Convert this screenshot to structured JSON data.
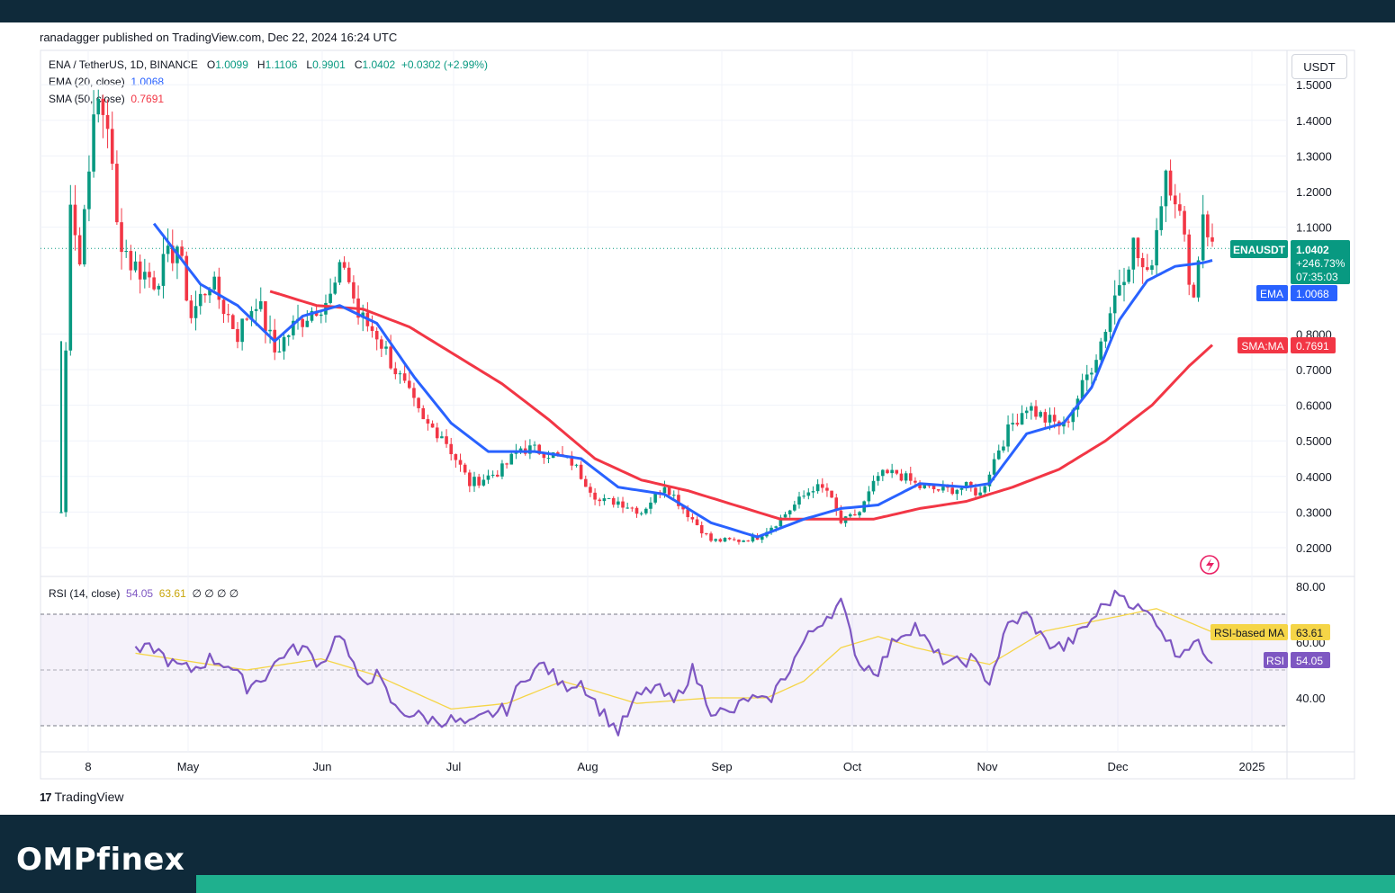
{
  "publisher": "ranadagger published on TradingView.com, Dec 22, 2024 16:24 UTC",
  "brand": "OMPfinex",
  "tradingview_label": "TradingView",
  "currency_button": "USDT",
  "legend": {
    "symbol": "ENA / TetherUS, 1D, BINANCE",
    "open_label": "O",
    "open": "1.0099",
    "high_label": "H",
    "high": "1.1106",
    "low_label": "L",
    "low": "0.9901",
    "close_label": "C",
    "close": "1.0402",
    "change": "+0.0302 (+2.99%)",
    "ema_label": "EMA (20, close)",
    "ema_value": "1.0068",
    "sma_label": "SMA (50, close)",
    "sma_value": "0.7691",
    "rsi_label": "RSI (14, close)",
    "rsi_value": "54.05",
    "rsi_ma_value": "63.61",
    "rsi_extra": "∅ ∅ ∅ ∅"
  },
  "badges": {
    "symbol_tag": "ENAUSDT",
    "price": "1.0402",
    "pct": "+246.73%",
    "countdown": "07:35:03",
    "ema_tag": "EMA",
    "ema_value": "1.0068",
    "sma_tag": "SMA:MA",
    "sma_value": "0.7691",
    "rsi_ma_tag": "RSI-based MA",
    "rsi_ma_value": "63.61",
    "rsi_tag": "RSI",
    "rsi_value": "54.05"
  },
  "colors": {
    "up": "#089981",
    "down": "#f23645",
    "ema": "#2962ff",
    "sma": "#f23645",
    "rsi": "#7e57c2",
    "rsi_ma": "#f5d547",
    "header": "#0f2a3a",
    "accent": "#1fb08e"
  },
  "chart_data": [
    {
      "type": "candlestick",
      "title": "ENA / TetherUS, 1D, BINANCE",
      "y_axis_ticks": [
        "1.5000",
        "1.4000",
        "1.3000",
        "1.2000",
        "1.1000",
        "0.8000",
        "0.7000",
        "0.6000",
        "0.5000",
        "0.4000",
        "0.3000",
        "0.2000"
      ],
      "x_axis_ticks": [
        "8",
        "May",
        "Jun",
        "Jul",
        "Aug",
        "Sep",
        "Oct",
        "Nov",
        "Dec",
        "2025"
      ],
      "price_path": [
        [
          0,
          0.3
        ],
        [
          1,
          0.75
        ],
        [
          2,
          1.2
        ],
        [
          4,
          1.0
        ],
        [
          6,
          1.3
        ],
        [
          8,
          1.45
        ],
        [
          10,
          1.4
        ],
        [
          12,
          1.1
        ],
        [
          15,
          1.0
        ],
        [
          20,
          0.95
        ],
        [
          25,
          1.05
        ],
        [
          28,
          0.85
        ],
        [
          32,
          0.95
        ],
        [
          38,
          0.8
        ],
        [
          42,
          0.9
        ],
        [
          46,
          0.75
        ],
        [
          50,
          0.82
        ],
        [
          55,
          0.88
        ],
        [
          58,
          0.9
        ],
        [
          61,
          1.0
        ],
        [
          64,
          0.85
        ],
        [
          68,
          0.8
        ],
        [
          72,
          0.7
        ],
        [
          78,
          0.55
        ],
        [
          82,
          0.52
        ],
        [
          88,
          0.38
        ],
        [
          92,
          0.4
        ],
        [
          95,
          0.42
        ],
        [
          99,
          0.48
        ],
        [
          104,
          0.47
        ],
        [
          110,
          0.44
        ],
        [
          116,
          0.33
        ],
        [
          120,
          0.33
        ],
        [
          125,
          0.3
        ],
        [
          130,
          0.38
        ],
        [
          134,
          0.31
        ],
        [
          140,
          0.22
        ],
        [
          146,
          0.22
        ],
        [
          150,
          0.23
        ],
        [
          154,
          0.27
        ],
        [
          158,
          0.32
        ],
        [
          162,
          0.37
        ],
        [
          165,
          0.36
        ],
        [
          168,
          0.27
        ],
        [
          172,
          0.3
        ],
        [
          176,
          0.4
        ],
        [
          180,
          0.41
        ],
        [
          185,
          0.37
        ],
        [
          190,
          0.36
        ],
        [
          195,
          0.37
        ],
        [
          198,
          0.35
        ],
        [
          202,
          0.48
        ],
        [
          205,
          0.55
        ],
        [
          208,
          0.6
        ],
        [
          212,
          0.56
        ],
        [
          216,
          0.54
        ],
        [
          220,
          0.65
        ],
        [
          224,
          0.78
        ],
        [
          228,
          0.95
        ],
        [
          231,
          1.05
        ],
        [
          234,
          0.95
        ],
        [
          236,
          1.1
        ],
        [
          238,
          1.27
        ],
        [
          240,
          1.2
        ],
        [
          242,
          1.05
        ],
        [
          244,
          0.9
        ],
        [
          246,
          1.15
        ],
        [
          248,
          1.04
        ]
      ],
      "ema_path": [
        [
          20,
          1.11
        ],
        [
          30,
          0.94
        ],
        [
          38,
          0.88
        ],
        [
          46,
          0.78
        ],
        [
          52,
          0.85
        ],
        [
          60,
          0.88
        ],
        [
          68,
          0.83
        ],
        [
          76,
          0.68
        ],
        [
          84,
          0.55
        ],
        [
          92,
          0.47
        ],
        [
          102,
          0.47
        ],
        [
          112,
          0.45
        ],
        [
          120,
          0.37
        ],
        [
          130,
          0.35
        ],
        [
          140,
          0.27
        ],
        [
          150,
          0.23
        ],
        [
          160,
          0.28
        ],
        [
          168,
          0.31
        ],
        [
          176,
          0.32
        ],
        [
          185,
          0.38
        ],
        [
          195,
          0.37
        ],
        [
          200,
          0.38
        ],
        [
          208,
          0.52
        ],
        [
          216,
          0.55
        ],
        [
          222,
          0.65
        ],
        [
          228,
          0.84
        ],
        [
          234,
          0.95
        ],
        [
          240,
          0.99
        ],
        [
          246,
          1.0
        ],
        [
          248,
          1.0068
        ]
      ],
      "sma_path": [
        [
          45,
          0.92
        ],
        [
          55,
          0.88
        ],
        [
          65,
          0.87
        ],
        [
          75,
          0.82
        ],
        [
          85,
          0.74
        ],
        [
          95,
          0.66
        ],
        [
          105,
          0.56
        ],
        [
          115,
          0.45
        ],
        [
          125,
          0.39
        ],
        [
          135,
          0.36
        ],
        [
          145,
          0.32
        ],
        [
          155,
          0.28
        ],
        [
          165,
          0.28
        ],
        [
          175,
          0.28
        ],
        [
          185,
          0.31
        ],
        [
          195,
          0.33
        ],
        [
          205,
          0.37
        ],
        [
          215,
          0.42
        ],
        [
          225,
          0.5
        ],
        [
          235,
          0.6
        ],
        [
          243,
          0.71
        ],
        [
          248,
          0.7691
        ]
      ],
      "last_price": 1.0402,
      "ema_20": 1.0068,
      "sma_50": 0.7691
    },
    {
      "type": "line",
      "title": "RSI (14, close)",
      "y_axis_ticks": [
        "80.00",
        "60.00",
        "40.00"
      ],
      "overbought": 70,
      "oversold": 30,
      "ylim": [
        25,
        85
      ],
      "rsi_path": [
        [
          16,
          56
        ],
        [
          20,
          58
        ],
        [
          24,
          52
        ],
        [
          28,
          50
        ],
        [
          32,
          54
        ],
        [
          36,
          52
        ],
        [
          40,
          44
        ],
        [
          44,
          48
        ],
        [
          48,
          56
        ],
        [
          52,
          58
        ],
        [
          56,
          52
        ],
        [
          60,
          64
        ],
        [
          64,
          46
        ],
        [
          68,
          48
        ],
        [
          72,
          36
        ],
        [
          76,
          34
        ],
        [
          80,
          32
        ],
        [
          84,
          32
        ],
        [
          88,
          30
        ],
        [
          92,
          34
        ],
        [
          96,
          36
        ],
        [
          100,
          48
        ],
        [
          104,
          52
        ],
        [
          108,
          44
        ],
        [
          112,
          46
        ],
        [
          116,
          36
        ],
        [
          120,
          28
        ],
        [
          124,
          40
        ],
        [
          128,
          44
        ],
        [
          132,
          38
        ],
        [
          136,
          50
        ],
        [
          140,
          36
        ],
        [
          144,
          34
        ],
        [
          148,
          40
        ],
        [
          152,
          38
        ],
        [
          156,
          48
        ],
        [
          160,
          60
        ],
        [
          164,
          68
        ],
        [
          168,
          74
        ],
        [
          172,
          52
        ],
        [
          176,
          50
        ],
        [
          180,
          62
        ],
        [
          184,
          66
        ],
        [
          188,
          56
        ],
        [
          192,
          52
        ],
        [
          196,
          54
        ],
        [
          200,
          46
        ],
        [
          204,
          66
        ],
        [
          208,
          70
        ],
        [
          212,
          60
        ],
        [
          216,
          58
        ],
        [
          220,
          64
        ],
        [
          224,
          72
        ],
        [
          228,
          78
        ],
        [
          232,
          72
        ],
        [
          236,
          68
        ],
        [
          240,
          56
        ],
        [
          244,
          60
        ],
        [
          248,
          54.05
        ]
      ],
      "rsi_ma_path": [
        [
          16,
          56
        ],
        [
          40,
          50
        ],
        [
          56,
          54
        ],
        [
          68,
          48
        ],
        [
          84,
          36
        ],
        [
          96,
          38
        ],
        [
          108,
          46
        ],
        [
          124,
          38
        ],
        [
          140,
          40
        ],
        [
          152,
          40
        ],
        [
          160,
          46
        ],
        [
          168,
          58
        ],
        [
          176,
          62
        ],
        [
          184,
          58
        ],
        [
          200,
          52
        ],
        [
          212,
          64
        ],
        [
          224,
          68
        ],
        [
          236,
          72
        ],
        [
          248,
          63.61
        ]
      ],
      "rsi": 54.05,
      "rsi_ma": 63.61
    }
  ]
}
